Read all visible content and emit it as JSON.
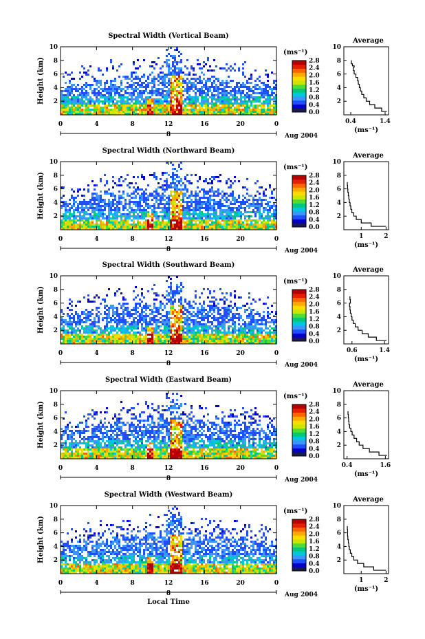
{
  "colors": {
    "colorbar": [
      "#1a1a4e",
      "#0000c8",
      "#1e50ff",
      "#3c96ff",
      "#00c8dc",
      "#00c878",
      "#50dc32",
      "#c8e600",
      "#ffdc00",
      "#ffaa00",
      "#ff6400",
      "#e61e00",
      "#b40000"
    ]
  },
  "colorbar_unit": "(ms⁻¹)",
  "colorbar_ticks": [
    "2.8",
    "2.4",
    "2.0",
    "1.6",
    "1.2",
    "0.8",
    "0.4",
    "0.0"
  ],
  "x_ticks": [
    "0",
    "4",
    "8",
    "12",
    "16",
    "20",
    "0"
  ],
  "y_ticks": [
    "2",
    "4",
    "6",
    "8",
    "10"
  ],
  "avg_y_ticks": [
    "2",
    "4",
    "6",
    "8",
    "10"
  ],
  "date_marker": "8",
  "date_label": "Aug 2004",
  "ylabel": "Height (km)",
  "xlabel": "Local Time",
  "avg_title": "Average",
  "avg_unit": "(ms⁻¹)",
  "panels": [
    {
      "title": "Spectral Width (Vertical Beam)",
      "avg_ticks": [
        "0.4",
        "1.4"
      ]
    },
    {
      "title": "Spectral Width (Northward Beam)",
      "avg_ticks": [
        "1",
        "2"
      ]
    },
    {
      "title": "Spectral Width (Southward Beam)",
      "avg_ticks": [
        "0.6",
        "1.4"
      ]
    },
    {
      "title": "Spectral Width (Eastward Beam)",
      "avg_ticks": [
        "0.4",
        "1.6"
      ]
    },
    {
      "title": "Spectral Width (Westward Beam)",
      "avg_ticks": [
        "1",
        "2"
      ]
    }
  ],
  "chart_data": [
    {
      "type": "heatmap",
      "title": "Spectral Width (Vertical Beam)",
      "xlabel": "",
      "ylabel": "Height (km)",
      "xlim": [
        0,
        24
      ],
      "ylim": [
        0,
        10
      ],
      "zlim": [
        0,
        2.8
      ],
      "avg_profile": {
        "title": "Average",
        "xlabel": "(ms⁻¹)",
        "xlim": [
          0.2,
          1.5
        ],
        "ylim": [
          0,
          10
        ],
        "x": [
          1.45,
          1.3,
          1.1,
          0.95,
          0.85,
          0.78,
          0.72,
          0.68,
          0.65,
          0.62,
          0.6,
          0.55,
          0.5,
          0.48,
          0.5,
          0.45,
          0.42
        ],
        "y": [
          0.5,
          1.0,
          1.5,
          2.0,
          2.5,
          3.0,
          3.5,
          4.0,
          4.5,
          5.0,
          5.5,
          6.0,
          6.5,
          7.0,
          7.2,
          7.5,
          8.0
        ]
      }
    },
    {
      "type": "heatmap",
      "title": "Spectral Width (Northward Beam)",
      "xlabel": "",
      "ylabel": "Height (km)",
      "xlim": [
        0,
        24
      ],
      "ylim": [
        0,
        10
      ],
      "zlim": [
        0,
        2.8
      ],
      "avg_profile": {
        "title": "Average",
        "xlabel": "(ms⁻¹)",
        "xlim": [
          0.3,
          2.1
        ],
        "ylim": [
          0,
          10
        ],
        "x": [
          2.0,
          1.4,
          1.0,
          0.8,
          0.7,
          0.62,
          0.58,
          0.55,
          0.52,
          0.5,
          0.48,
          0.46,
          0.45,
          0.44
        ],
        "y": [
          0.5,
          1.0,
          1.5,
          2.0,
          2.5,
          3.0,
          3.5,
          4.0,
          4.5,
          5.0,
          5.5,
          6.0,
          6.5,
          7.0
        ]
      }
    },
    {
      "type": "heatmap",
      "title": "Spectral Width (Southward Beam)",
      "xlabel": "",
      "ylabel": "Height (km)",
      "xlim": [
        0,
        24
      ],
      "ylim": [
        0,
        10
      ],
      "zlim": [
        0,
        2.8
      ],
      "avg_profile": {
        "title": "Average",
        "xlabel": "(ms⁻¹)",
        "xlim": [
          0.4,
          1.5
        ],
        "ylim": [
          0,
          10
        ],
        "x": [
          1.45,
          1.2,
          1.0,
          0.85,
          0.75,
          0.68,
          0.63,
          0.6,
          0.58,
          0.56,
          0.55,
          0.54,
          0.56,
          0.55
        ],
        "y": [
          0.5,
          1.0,
          1.5,
          2.0,
          2.5,
          3.0,
          3.5,
          4.0,
          4.5,
          5.0,
          5.5,
          6.0,
          6.5,
          7.0
        ]
      }
    },
    {
      "type": "heatmap",
      "title": "Spectral Width (Eastward Beam)",
      "xlabel": "",
      "ylabel": "Height (km)",
      "xlim": [
        0,
        24
      ],
      "ylim": [
        0,
        10
      ],
      "zlim": [
        0,
        2.8
      ],
      "avg_profile": {
        "title": "Average",
        "xlabel": "(ms⁻¹)",
        "xlim": [
          0.3,
          1.7
        ],
        "ylim": [
          0,
          10
        ],
        "x": [
          1.65,
          1.4,
          1.1,
          0.9,
          0.78,
          0.7,
          0.62,
          0.56,
          0.52,
          0.48,
          0.46,
          0.45,
          0.44,
          0.43
        ],
        "y": [
          0.5,
          1.0,
          1.5,
          2.0,
          2.5,
          3.0,
          3.5,
          4.0,
          4.5,
          5.0,
          5.5,
          6.0,
          6.5,
          7.0
        ]
      }
    },
    {
      "type": "heatmap",
      "title": "Spectral Width (Westward Beam)",
      "xlabel": "Local Time",
      "ylabel": "Height (km)",
      "xlim": [
        0,
        24
      ],
      "ylim": [
        0,
        10
      ],
      "zlim": [
        0,
        2.8
      ],
      "avg_profile": {
        "title": "Average",
        "xlabel": "(ms⁻¹)",
        "xlim": [
          0.3,
          2.1
        ],
        "ylim": [
          0,
          10
        ],
        "x": [
          2.0,
          1.5,
          1.1,
          0.85,
          0.7,
          0.62,
          0.56,
          0.52,
          0.5,
          0.48,
          0.46,
          0.45,
          0.45,
          0.44
        ],
        "y": [
          0.5,
          1.0,
          1.5,
          2.0,
          2.5,
          3.0,
          3.5,
          4.0,
          4.5,
          5.0,
          5.5,
          6.0,
          6.5,
          7.0
        ]
      }
    }
  ]
}
